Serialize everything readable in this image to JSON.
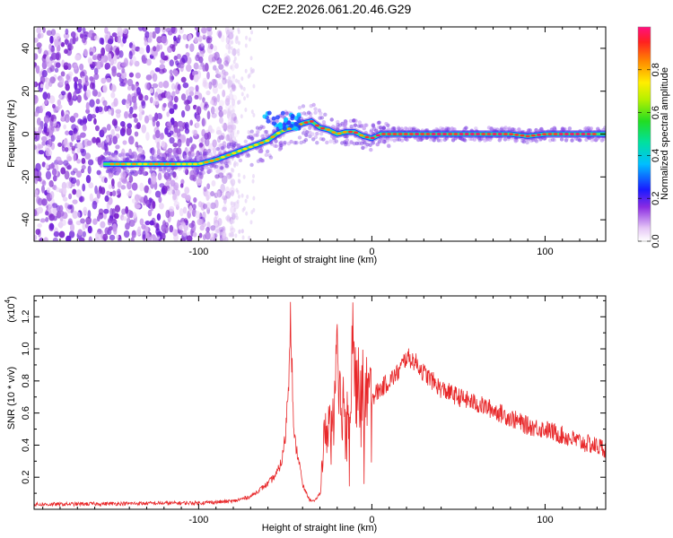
{
  "title": "C2E2.2026.061.20.46.G29",
  "chart_data": [
    {
      "type": "heatmap",
      "name": "spectrogram",
      "xlabel": "Height of straight line (km)",
      "ylabel": "Frequency (Hz)",
      "xlim": [
        -195,
        135
      ],
      "ylim": [
        -50,
        50
      ],
      "xticks": [
        -100,
        0,
        100
      ],
      "yticks": [
        -40,
        -20,
        0,
        20,
        40
      ],
      "noise_region_x": [
        -195,
        -78
      ],
      "ridge": {
        "x": [
          -155,
          -130,
          -110,
          -100,
          -90,
          -80,
          -70,
          -60,
          -55,
          -50,
          -45,
          -40,
          -35,
          -30,
          -25,
          -20,
          -15,
          -10,
          -5,
          0,
          5,
          10,
          20,
          40,
          60,
          80,
          90,
          100,
          120,
          135
        ],
        "y": [
          -14,
          -14,
          -14,
          -14,
          -12,
          -9,
          -6,
          -3,
          0,
          2,
          3,
          5,
          6,
          3,
          2,
          0,
          1,
          1,
          -1,
          -2,
          0,
          0,
          0,
          0,
          0,
          0,
          -1,
          0,
          0,
          0
        ]
      },
      "colorbar": {
        "label": "Normalized spectral amplitude",
        "range": [
          0,
          1
        ],
        "ticks": [
          "0.0",
          "0.2",
          "0.4",
          "0.6",
          "0.8"
        ]
      }
    },
    {
      "type": "line",
      "name": "snr",
      "xlabel": "Height of straight line (km)",
      "ylabel": "SNR (10 * v/v)",
      "y_multiplier": "(x10",
      "y_multiplier_exp": "4",
      "y_multiplier_close": ")",
      "xlim": [
        -195,
        135
      ],
      "ylim": [
        0,
        1.33
      ],
      "xticks": [
        -100,
        0,
        100
      ],
      "yticks": [
        "0.2",
        "0.4",
        "0.6",
        "0.8",
        "1.0",
        "1.2"
      ],
      "color": "#e8282a",
      "envelope": {
        "x": [
          -195,
          -150,
          -100,
          -80,
          -70,
          -65,
          -60,
          -55,
          -52,
          -50,
          -48,
          -47,
          -45,
          -42,
          -40,
          -36,
          -33,
          -30,
          -28,
          -25,
          -22,
          -20,
          -18,
          -16,
          -14,
          -12,
          -11,
          -10,
          -8,
          -5,
          0,
          5,
          10,
          15,
          20,
          25,
          30,
          40,
          50,
          60,
          70,
          80,
          90,
          100,
          110,
          120,
          135
        ],
        "y": [
          0.03,
          0.035,
          0.04,
          0.05,
          0.08,
          0.12,
          0.16,
          0.22,
          0.3,
          0.45,
          0.8,
          1.27,
          0.45,
          0.3,
          0.15,
          0.06,
          0.05,
          0.1,
          0.4,
          0.55,
          0.6,
          1.2,
          0.6,
          0.7,
          0.6,
          0.8,
          1.33,
          0.8,
          0.75,
          0.75,
          0.7,
          0.75,
          0.8,
          0.85,
          0.95,
          0.92,
          0.85,
          0.75,
          0.7,
          0.66,
          0.62,
          0.57,
          0.52,
          0.5,
          0.46,
          0.42,
          0.38
        ]
      }
    }
  ]
}
